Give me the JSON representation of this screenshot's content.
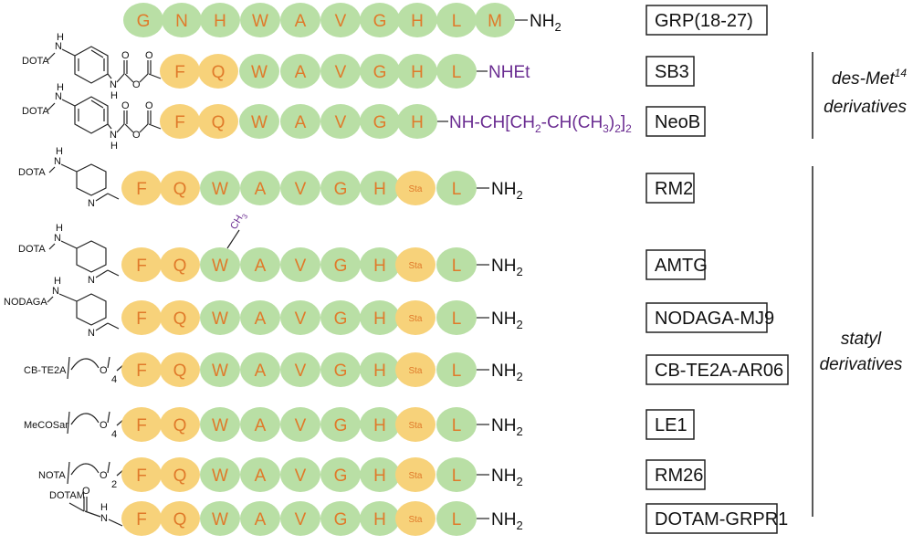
{
  "colors": {
    "hydrophobic": "#f7d27a",
    "other": "#b9dfa5",
    "residue_text": "#e07a2a",
    "modifier": "#6a2c91",
    "reference": "#2e6db4"
  },
  "reference": {
    "label": "GRP(18-27)",
    "sequence": [
      "G",
      "N",
      "H",
      "W",
      "A",
      "V",
      "G",
      "H",
      "L",
      "M"
    ],
    "colors": [
      "g",
      "g",
      "g",
      "g",
      "g",
      "g",
      "g",
      "g",
      "g",
      "g"
    ],
    "cterm": "NH",
    "cterm_sub": "2"
  },
  "desmet": [
    {
      "label": "SB3",
      "chelator": "DOTA",
      "sequence": [
        "F",
        "Q",
        "W",
        "A",
        "V",
        "G",
        "H",
        "L"
      ],
      "colors": [
        "y",
        "y",
        "g",
        "g",
        "g",
        "g",
        "g",
        "g"
      ],
      "cterm": "NHEt"
    },
    {
      "label": "NeoB",
      "chelator": "DOTA",
      "sequence": [
        "F",
        "Q",
        "W",
        "A",
        "V",
        "G",
        "H"
      ],
      "colors": [
        "y",
        "y",
        "g",
        "g",
        "g",
        "g",
        "g"
      ],
      "cterm_parts": [
        "NH-CH[CH",
        "2",
        "-CH(CH",
        "3",
        ")",
        "2",
        "]",
        "2"
      ]
    }
  ],
  "statyl": [
    {
      "label": "RM2",
      "chelator": "DOTA",
      "spacer": "piperidine",
      "sequence": [
        "F",
        "Q",
        "W",
        "A",
        "V",
        "G",
        "H",
        "Sta",
        "L"
      ],
      "cterm": "NH",
      "cterm_sub": "2"
    },
    {
      "label": "AMTG",
      "chelator": "DOTA",
      "spacer": "piperidine",
      "sequence": [
        "F",
        "Q",
        "W",
        "A",
        "V",
        "G",
        "H",
        "Sta",
        "L"
      ],
      "cterm": "NH",
      "cterm_sub": "2",
      "methyl": "CH",
      "methyl_sub": "3"
    },
    {
      "label": "NODAGA-MJ9",
      "chelator": "NODAGA",
      "spacer": "piperidine",
      "sequence": [
        "F",
        "Q",
        "W",
        "A",
        "V",
        "G",
        "H",
        "Sta",
        "L"
      ],
      "cterm": "NH",
      "cterm_sub": "2"
    },
    {
      "label": "CB-TE2A-AR06",
      "chelator": "CB-TE2A",
      "spacer": "peg",
      "peg_n": "4",
      "sequence": [
        "F",
        "Q",
        "W",
        "A",
        "V",
        "G",
        "H",
        "Sta",
        "L"
      ],
      "cterm": "NH",
      "cterm_sub": "2"
    },
    {
      "label": "LE1",
      "chelator": "MeCOSar",
      "spacer": "peg",
      "peg_n": "4",
      "sequence": [
        "F",
        "Q",
        "W",
        "A",
        "V",
        "G",
        "H",
        "Sta",
        "L"
      ],
      "cterm": "NH",
      "cterm_sub": "2"
    },
    {
      "label": "RM26",
      "chelator": "NOTA",
      "spacer": "peg",
      "peg_n": "2",
      "sequence": [
        "F",
        "Q",
        "W",
        "A",
        "V",
        "G",
        "H",
        "Sta",
        "L"
      ],
      "cterm": "NH",
      "cterm_sub": "2"
    },
    {
      "label": "DOTAM-GRPR1",
      "chelator": "DOTAM",
      "spacer": "amide",
      "sequence": [
        "F",
        "Q",
        "W",
        "A",
        "V",
        "G",
        "H",
        "Sta",
        "L"
      ],
      "cterm": "NH",
      "cterm_sub": "2"
    }
  ],
  "groups": {
    "desmet_line1": "des-Met",
    "desmet_sup": "14",
    "desmet_line2": "derivatives",
    "statyl_line1": "statyl",
    "statyl_line2": "derivatives"
  },
  "chem": {
    "N": "N",
    "H": "H",
    "O": "O"
  }
}
